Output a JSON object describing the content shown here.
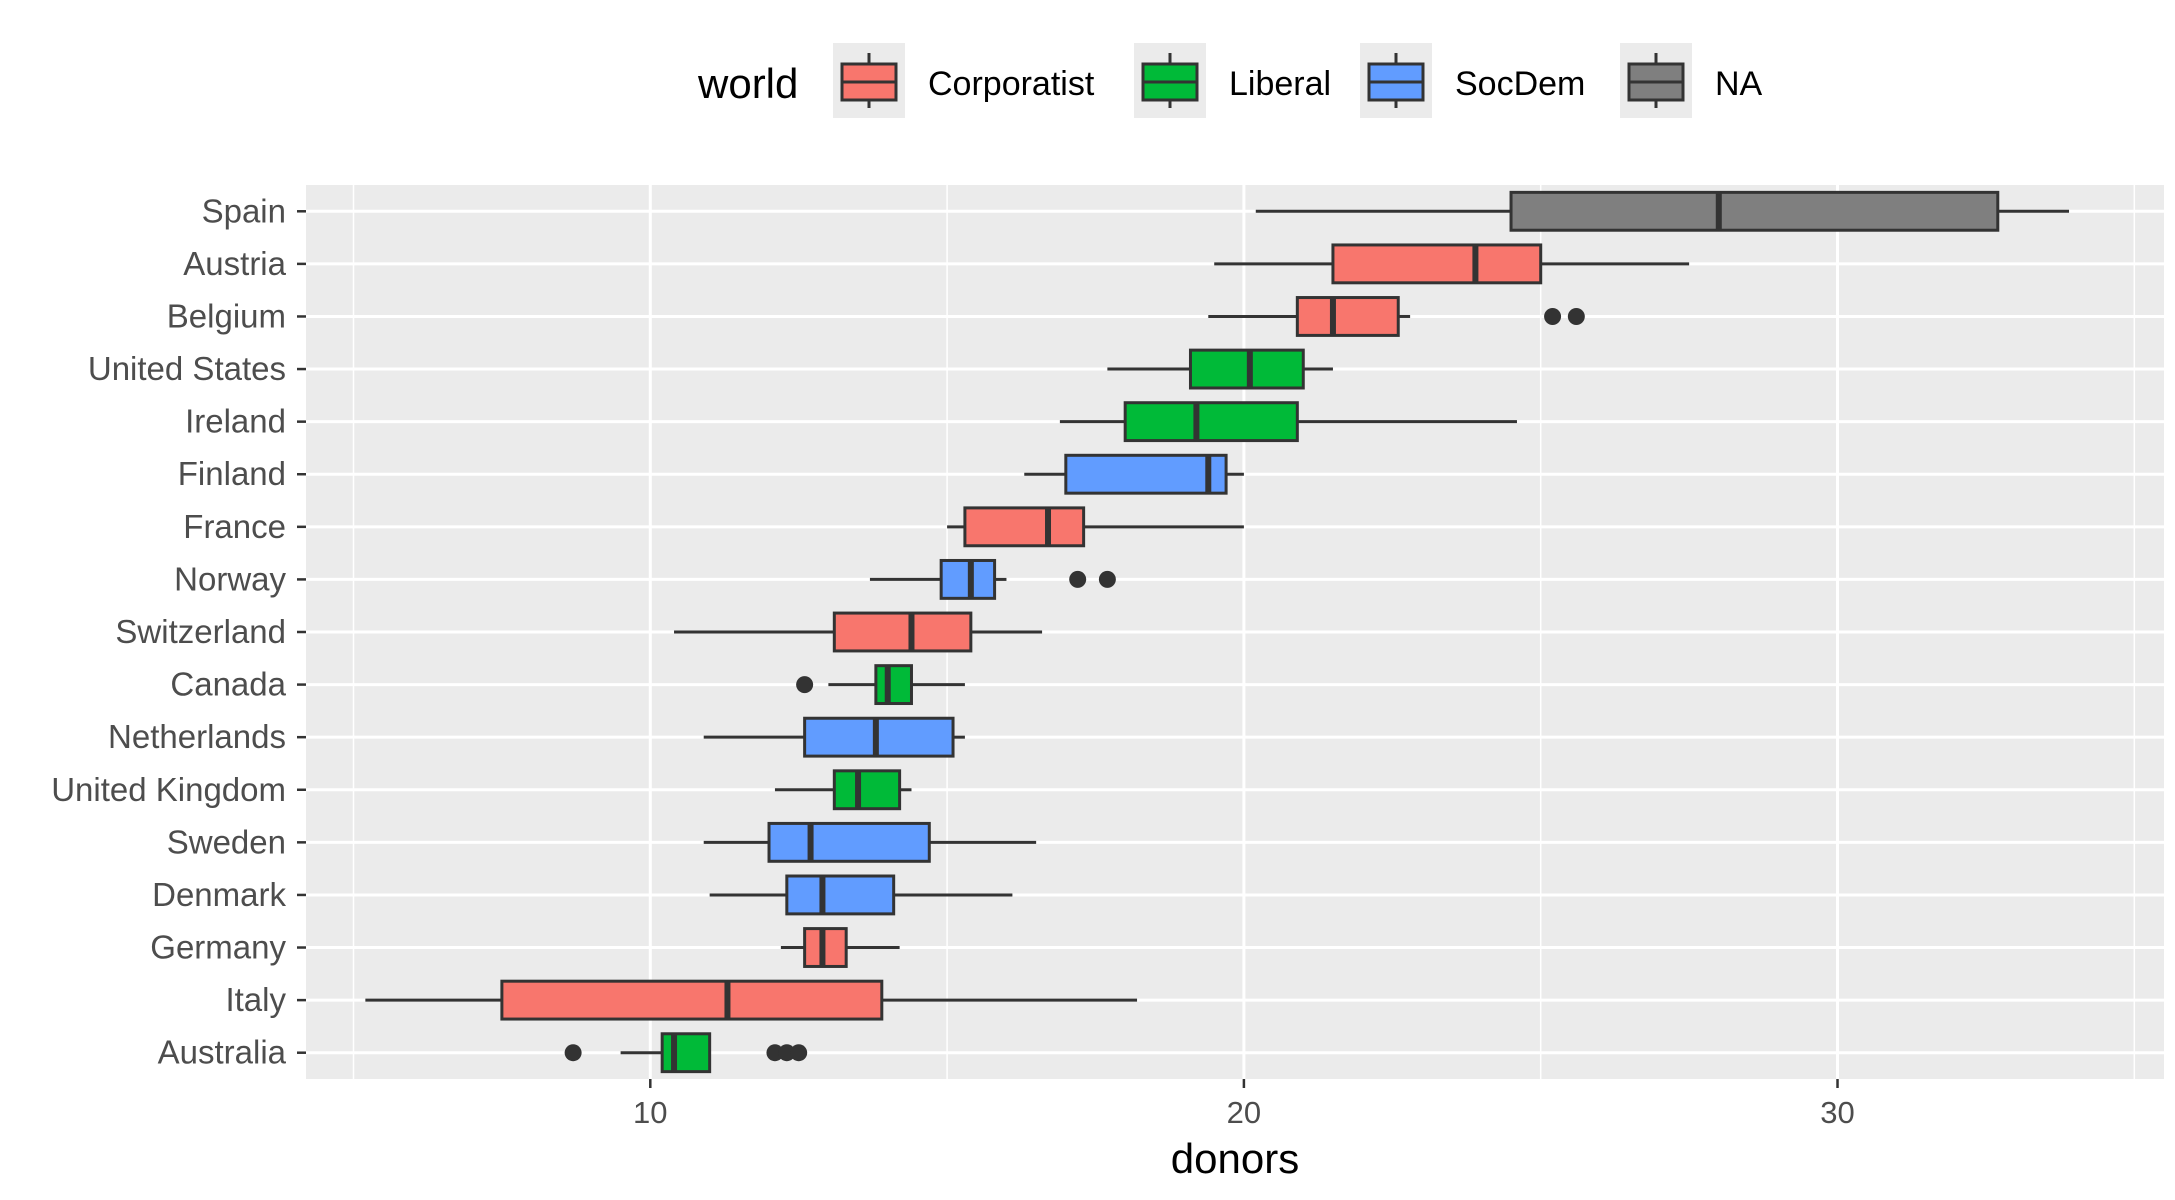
{
  "chart_data": {
    "type": "boxplot",
    "orientation": "horizontal",
    "xlabel": "donors",
    "ylabel": "",
    "xlim": [
      4.2,
      35.5
    ],
    "x_ticks": [
      10,
      20,
      30
    ],
    "x_minor_ticks": [
      5,
      15,
      25,
      35
    ],
    "grid": true,
    "legend": {
      "title": "world",
      "position": "top",
      "entries": [
        {
          "name": "Corporatist",
          "color": "#F8766D"
        },
        {
          "name": "Liberal",
          "color": "#00BA38"
        },
        {
          "name": "SocDem",
          "color": "#619CFF"
        },
        {
          "name": "NA",
          "color": "#7F7F7F"
        }
      ]
    },
    "categories": [
      "Spain",
      "Austria",
      "Belgium",
      "United States",
      "Ireland",
      "Finland",
      "France",
      "Norway",
      "Switzerland",
      "Canada",
      "Netherlands",
      "United Kingdom",
      "Sweden",
      "Denmark",
      "Germany",
      "Italy",
      "Australia"
    ],
    "boxes": [
      {
        "country": "Spain",
        "world": "NA",
        "whisker_low": 20.2,
        "q1": 24.5,
        "median": 28.0,
        "q3": 32.7,
        "whisker_high": 33.9,
        "outliers": []
      },
      {
        "country": "Austria",
        "world": "Corporatist",
        "whisker_low": 19.5,
        "q1": 21.5,
        "median": 23.9,
        "q3": 25.0,
        "whisker_high": 27.5,
        "outliers": []
      },
      {
        "country": "Belgium",
        "world": "Corporatist",
        "whisker_low": 19.4,
        "q1": 20.9,
        "median": 21.5,
        "q3": 22.6,
        "whisker_high": 22.8,
        "outliers": [
          25.2,
          25.6
        ]
      },
      {
        "country": "United States",
        "world": "Liberal",
        "whisker_low": 17.7,
        "q1": 19.1,
        "median": 20.1,
        "q3": 21.0,
        "whisker_high": 21.5,
        "outliers": []
      },
      {
        "country": "Ireland",
        "world": "Liberal",
        "whisker_low": 16.9,
        "q1": 18.0,
        "median": 19.2,
        "q3": 20.9,
        "whisker_high": 24.6,
        "outliers": []
      },
      {
        "country": "Finland",
        "world": "SocDem",
        "whisker_low": 16.3,
        "q1": 17.0,
        "median": 19.4,
        "q3": 19.7,
        "whisker_high": 20.0,
        "outliers": []
      },
      {
        "country": "France",
        "world": "Corporatist",
        "whisker_low": 15.0,
        "q1": 15.3,
        "median": 16.7,
        "q3": 17.3,
        "whisker_high": 20.0,
        "outliers": []
      },
      {
        "country": "Norway",
        "world": "SocDem",
        "whisker_low": 13.7,
        "q1": 14.9,
        "median": 15.4,
        "q3": 15.8,
        "whisker_high": 16.0,
        "outliers": [
          17.2,
          17.7
        ]
      },
      {
        "country": "Switzerland",
        "world": "Corporatist",
        "whisker_low": 10.4,
        "q1": 13.1,
        "median": 14.4,
        "q3": 15.4,
        "whisker_high": 16.6,
        "outliers": []
      },
      {
        "country": "Canada",
        "world": "Liberal",
        "whisker_low": 13.0,
        "q1": 13.8,
        "median": 14.0,
        "q3": 14.4,
        "whisker_high": 15.3,
        "outliers": [
          12.6
        ]
      },
      {
        "country": "Netherlands",
        "world": "SocDem",
        "whisker_low": 10.9,
        "q1": 12.6,
        "median": 13.8,
        "q3": 15.1,
        "whisker_high": 15.3,
        "outliers": []
      },
      {
        "country": "United Kingdom",
        "world": "Liberal",
        "whisker_low": 12.1,
        "q1": 13.1,
        "median": 13.5,
        "q3": 14.2,
        "whisker_high": 14.4,
        "outliers": []
      },
      {
        "country": "Sweden",
        "world": "SocDem",
        "whisker_low": 10.9,
        "q1": 12.0,
        "median": 12.7,
        "q3": 14.7,
        "whisker_high": 16.5,
        "outliers": []
      },
      {
        "country": "Denmark",
        "world": "SocDem",
        "whisker_low": 11.0,
        "q1": 12.3,
        "median": 12.9,
        "q3": 14.1,
        "whisker_high": 16.1,
        "outliers": []
      },
      {
        "country": "Germany",
        "world": "Corporatist",
        "whisker_low": 12.2,
        "q1": 12.6,
        "median": 12.9,
        "q3": 13.3,
        "whisker_high": 14.2,
        "outliers": []
      },
      {
        "country": "Italy",
        "world": "Corporatist",
        "whisker_low": 5.2,
        "q1": 7.5,
        "median": 11.3,
        "q3": 13.9,
        "whisker_high": 18.2,
        "outliers": []
      },
      {
        "country": "Australia",
        "world": "Liberal",
        "whisker_low": 9.5,
        "q1": 10.2,
        "median": 10.4,
        "q3": 11.0,
        "whisker_high": 11.0,
        "outliers": [
          8.7,
          12.1,
          12.3,
          12.5
        ]
      }
    ]
  }
}
